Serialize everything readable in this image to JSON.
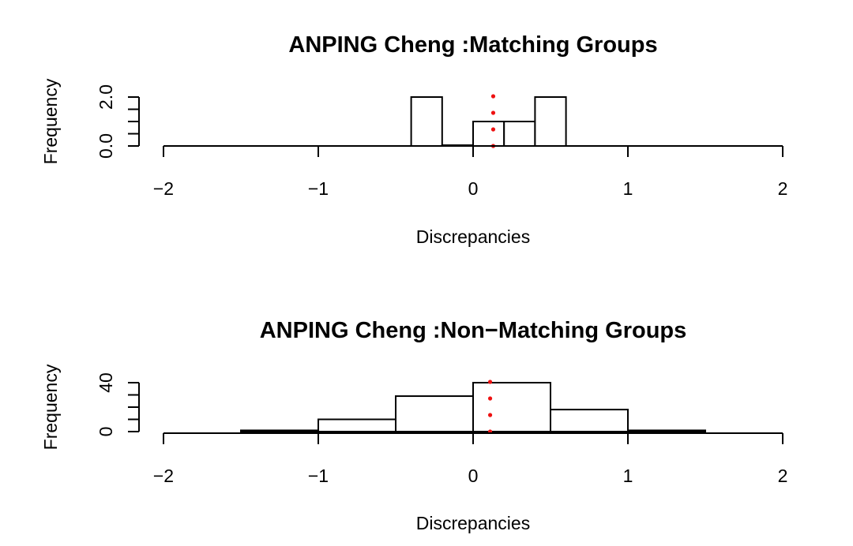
{
  "chart_data": [
    {
      "type": "histogram",
      "title": "ANPING Cheng :Matching Groups",
      "xlabel": "Discrepancies",
      "ylabel": "Frequency",
      "xlim": [
        -2,
        2
      ],
      "ylim": [
        0,
        2
      ],
      "x_ticks": [
        -2,
        -1,
        0,
        1,
        2
      ],
      "x_tick_labels": [
        "−2",
        "−1",
        "0",
        "1",
        "2"
      ],
      "y_ticks": [
        0,
        0.5,
        1,
        1.5,
        2
      ],
      "y_tick_labels": [
        "0.0",
        "",
        "",
        "",
        "2.0"
      ],
      "bins": [
        {
          "x0": -0.4,
          "x1": -0.2,
          "count": 2
        },
        {
          "x0": -0.2,
          "x1": 0.0,
          "count": 0
        },
        {
          "x0": 0.0,
          "x1": 0.2,
          "count": 1
        },
        {
          "x0": 0.2,
          "x1": 0.4,
          "count": 1
        },
        {
          "x0": 0.4,
          "x1": 0.6,
          "count": 2
        }
      ],
      "reference_line": {
        "x": 0.13,
        "style": "dotted",
        "color": "#ee1111"
      }
    },
    {
      "type": "histogram",
      "title": "ANPING Cheng :Non−Matching Groups",
      "xlabel": "Discrepancies",
      "ylabel": "Frequency",
      "xlim": [
        -2,
        2
      ],
      "ylim": [
        0,
        40
      ],
      "x_ticks": [
        -2,
        -1,
        0,
        1,
        2
      ],
      "x_tick_labels": [
        "−2",
        "−1",
        "0",
        "1",
        "2"
      ],
      "y_ticks": [
        0,
        10,
        20,
        30,
        40
      ],
      "y_tick_labels": [
        "0",
        "",
        "",
        "",
        "40"
      ],
      "bins": [
        {
          "x0": -1.5,
          "x1": -1.0,
          "count": 1
        },
        {
          "x0": -1.0,
          "x1": -0.5,
          "count": 10
        },
        {
          "x0": -0.5,
          "x1": 0.0,
          "count": 29
        },
        {
          "x0": 0.0,
          "x1": 0.5,
          "count": 40
        },
        {
          "x0": 0.5,
          "x1": 1.0,
          "count": 18
        },
        {
          "x0": 1.0,
          "x1": 1.5,
          "count": 1
        }
      ],
      "reference_line": {
        "x": 0.11,
        "style": "dotted",
        "color": "#ee1111"
      }
    }
  ]
}
